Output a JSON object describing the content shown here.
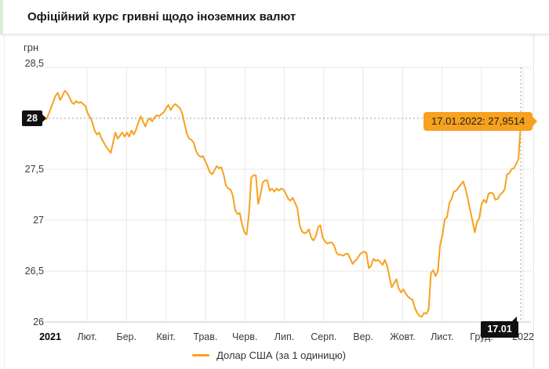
{
  "header": {
    "title": "Офіційний курс гривні щодо іноземних валют"
  },
  "legend": {
    "label": "Долар США (за 1 одиницю)"
  },
  "chart_data": {
    "type": "line",
    "title": "Офіційний курс гривні щодо іноземних валют",
    "y_unit": "грн",
    "series_name": "Долар США (за 1 одиницю)",
    "line_color": "#f7a11e",
    "grid": true,
    "legend_position": "bottom",
    "ylim": [
      26,
      28.5
    ],
    "y_ticks": [
      {
        "v": 28.5,
        "label": "28,5"
      },
      {
        "v": 28,
        "label": "28",
        "badge": true
      },
      {
        "v": 27.5,
        "label": "27,5"
      },
      {
        "v": 27,
        "label": "27"
      },
      {
        "v": 26.5,
        "label": "26,5"
      },
      {
        "v": 26,
        "label": "26"
      }
    ],
    "x_ticks": [
      {
        "label": "2021",
        "bold": true
      },
      {
        "label": "Лют."
      },
      {
        "label": "Бер."
      },
      {
        "label": "Квіт."
      },
      {
        "label": "Трав."
      },
      {
        "label": "Черв."
      },
      {
        "label": "Лип."
      },
      {
        "label": "Серп."
      },
      {
        "label": "Вер."
      },
      {
        "label": "Жовт."
      },
      {
        "label": "Лист."
      },
      {
        "label": "Груд."
      },
      {
        "label": "2022"
      }
    ],
    "marker": {
      "date": "17.01.2022",
      "value": 27.9514,
      "tooltip": "17.01.2022: 27,9514",
      "y_badge": "28",
      "x_badge": "17.01"
    },
    "points": [
      27.99,
      28.04,
      28.1,
      28.16,
      28.22,
      28.25,
      28.18,
      28.22,
      28.27,
      28.25,
      28.21,
      28.16,
      28.14,
      28.17,
      28.15,
      28.16,
      28.14,
      28.12,
      28.05,
      28.01,
      27.96,
      27.88,
      27.84,
      27.86,
      27.8,
      27.76,
      27.72,
      27.69,
      27.66,
      27.76,
      27.86,
      27.8,
      27.83,
      27.86,
      27.82,
      27.86,
      27.82,
      27.88,
      27.84,
      27.89,
      27.96,
      28.02,
      27.97,
      27.92,
      27.98,
      28.0,
      27.97,
      28.01,
      28.03,
      28.02,
      28.04,
      28.06,
      28.1,
      28.13,
      28.08,
      28.12,
      28.14,
      28.12,
      28.1,
      28.05,
      27.95,
      27.85,
      27.8,
      27.79,
      27.76,
      27.68,
      27.64,
      27.62,
      27.63,
      27.58,
      27.53,
      27.47,
      27.45,
      27.49,
      27.53,
      27.51,
      27.52,
      27.45,
      27.34,
      27.31,
      27.3,
      27.24,
      27.1,
      27.06,
      27.07,
      26.96,
      26.88,
      26.86,
      27.06,
      27.42,
      27.44,
      27.44,
      27.16,
      27.25,
      27.37,
      27.39,
      27.39,
      27.29,
      27.31,
      27.28,
      27.31,
      27.29,
      27.31,
      27.3,
      27.26,
      27.21,
      27.19,
      27.22,
      27.17,
      27.12,
      26.95,
      26.89,
      26.87,
      26.88,
      26.91,
      26.83,
      26.8,
      26.84,
      26.93,
      26.95,
      26.83,
      26.79,
      26.77,
      26.78,
      26.78,
      26.75,
      26.68,
      26.66,
      26.66,
      26.65,
      26.67,
      26.67,
      26.62,
      26.57,
      26.6,
      26.62,
      26.66,
      26.68,
      26.69,
      26.68,
      26.53,
      26.55,
      26.62,
      26.6,
      26.61,
      26.59,
      26.56,
      26.61,
      26.55,
      26.44,
      26.34,
      26.38,
      26.42,
      26.33,
      26.29,
      26.32,
      26.28,
      26.25,
      26.23,
      26.22,
      26.14,
      26.09,
      26.06,
      26.05,
      26.09,
      26.08,
      26.12,
      26.48,
      26.51,
      26.45,
      26.5,
      26.76,
      26.85,
      27.01,
      27.03,
      27.17,
      27.21,
      27.28,
      27.29,
      27.32,
      27.35,
      27.38,
      27.31,
      27.21,
      27.1,
      27.0,
      26.88,
      26.98,
      27.02,
      27.16,
      27.2,
      27.17,
      27.26,
      27.27,
      27.26,
      27.2,
      27.21,
      27.25,
      27.27,
      27.3,
      27.45,
      27.46,
      27.5,
      27.51,
      27.55,
      27.6,
      27.9514
    ]
  }
}
